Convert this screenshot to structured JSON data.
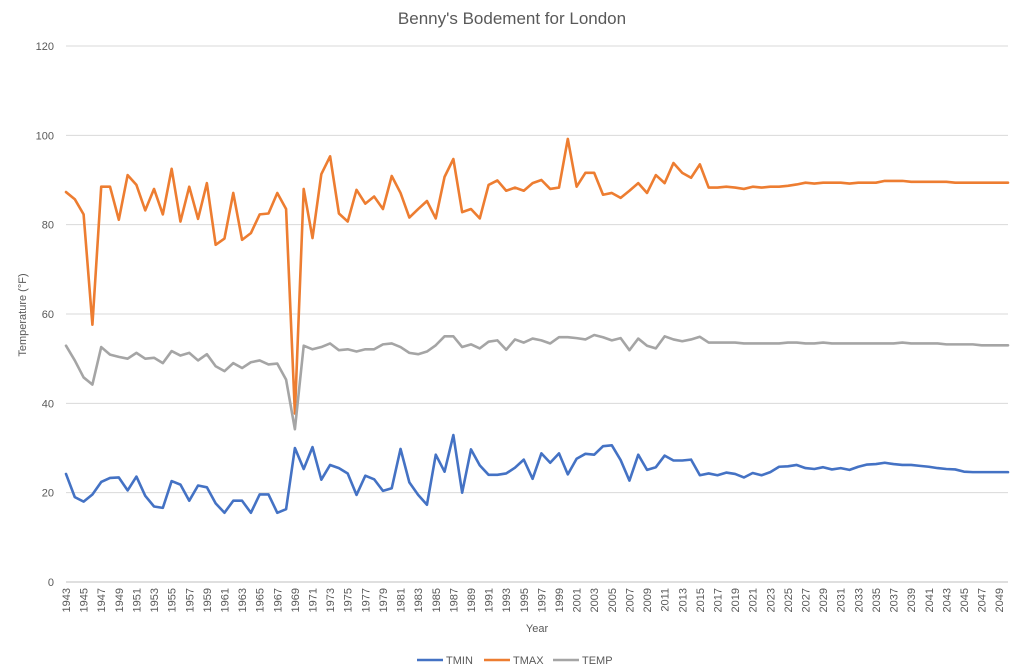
{
  "chart_data": {
    "type": "line",
    "title": "Benny's Bodement for London",
    "xlabel": "Year",
    "ylabel": "Temperature (°F)",
    "ylim": [
      0,
      120
    ],
    "yticks": [
      0,
      20,
      40,
      60,
      80,
      100,
      120
    ],
    "xlim": [
      1943,
      2050
    ],
    "x_tick_step": 2,
    "grid": "horizontal",
    "legend_position": "bottom",
    "x": [
      1943,
      1944,
      1945,
      1946,
      1947,
      1948,
      1949,
      1950,
      1951,
      1952,
      1953,
      1954,
      1955,
      1956,
      1957,
      1958,
      1959,
      1960,
      1961,
      1962,
      1963,
      1964,
      1965,
      1966,
      1967,
      1968,
      1969,
      1970,
      1971,
      1972,
      1973,
      1974,
      1975,
      1976,
      1977,
      1978,
      1979,
      1980,
      1981,
      1982,
      1983,
      1984,
      1985,
      1986,
      1987,
      1988,
      1989,
      1990,
      1991,
      1992,
      1993,
      1994,
      1995,
      1996,
      1997,
      1998,
      1999,
      2000,
      2001,
      2002,
      2003,
      2004,
      2005,
      2006,
      2007,
      2008,
      2009,
      2010,
      2011,
      2012,
      2013,
      2014,
      2015,
      2016,
      2017,
      2018,
      2019,
      2020,
      2021,
      2022,
      2023,
      2024,
      2025,
      2026,
      2027,
      2028,
      2029,
      2030,
      2031,
      2032,
      2033,
      2034,
      2035,
      2036,
      2037,
      2038,
      2039,
      2040,
      2041,
      2042,
      2043,
      2044,
      2045,
      2046,
      2047,
      2048,
      2049,
      2050
    ],
    "series": [
      {
        "name": "TMIN",
        "color": "#4472c4",
        "values": [
          24.2,
          19.0,
          18.0,
          19.6,
          22.4,
          23.3,
          23.4,
          20.5,
          23.6,
          19.3,
          16.9,
          16.6,
          22.6,
          21.8,
          18.2,
          21.6,
          21.2,
          17.6,
          15.5,
          18.2,
          18.2,
          15.5,
          19.6,
          19.6,
          15.5,
          16.3,
          30.0,
          25.3,
          30.2,
          22.9,
          26.2,
          25.5,
          24.3,
          19.5,
          23.8,
          23.0,
          20.4,
          21.0,
          29.8,
          22.3,
          19.5,
          17.3,
          28.5,
          24.7,
          32.9,
          20.0,
          29.7,
          26.1,
          24.0,
          24.0,
          24.3,
          25.6,
          27.4,
          23.1,
          28.8,
          26.7,
          28.8,
          24.1,
          27.6,
          28.7,
          28.5,
          30.4,
          30.6,
          27.3,
          22.7,
          28.5,
          25.1,
          25.7,
          28.3,
          27.2,
          27.2,
          27.4,
          23.9,
          24.3,
          23.9,
          24.5,
          24.2,
          23.4,
          24.4,
          23.9,
          24.6,
          25.8,
          25.9,
          26.2,
          25.5,
          25.3,
          25.7,
          25.2,
          25.5,
          25.1,
          25.8,
          26.3,
          26.4,
          26.7,
          26.4,
          26.2,
          26.2,
          26.0,
          25.8,
          25.5,
          25.3,
          25.2,
          24.7,
          24.6,
          24.6,
          24.6,
          24.6,
          24.6
        ]
      },
      {
        "name": "TMAX",
        "color": "#ed7d31",
        "values": [
          87.3,
          85.7,
          82.3,
          57.6,
          88.5,
          88.5,
          81.1,
          91.1,
          88.9,
          83.2,
          88.0,
          82.3,
          92.5,
          80.7,
          88.5,
          81.3,
          89.3,
          75.5,
          76.9,
          87.1,
          76.6,
          78.1,
          82.3,
          82.5,
          87.1,
          83.5,
          37.7,
          88.0,
          77.0,
          91.3,
          95.3,
          82.5,
          80.7,
          87.8,
          84.7,
          86.3,
          83.5,
          90.9,
          87.1,
          81.6,
          83.5,
          85.3,
          81.4,
          90.7,
          94.7,
          82.8,
          83.5,
          81.4,
          88.9,
          89.9,
          87.6,
          88.3,
          87.6,
          89.3,
          90.0,
          88.0,
          88.3,
          99.2,
          88.5,
          91.6,
          91.6,
          86.7,
          87.1,
          86.0,
          87.6,
          89.3,
          87.1,
          91.1,
          89.3,
          93.8,
          91.6,
          90.5,
          93.5,
          88.3,
          88.3,
          88.5,
          88.3,
          88.0,
          88.5,
          88.3,
          88.5,
          88.5,
          88.7,
          89.0,
          89.4,
          89.2,
          89.4,
          89.4,
          89.4,
          89.2,
          89.4,
          89.4,
          89.4,
          89.8,
          89.8,
          89.8,
          89.6,
          89.6,
          89.6,
          89.6,
          89.6,
          89.4,
          89.4,
          89.4,
          89.4,
          89.4,
          89.4,
          89.4
        ]
      },
      {
        "name": "TEMP",
        "color": "#a5a5a5",
        "values": [
          52.9,
          49.6,
          45.8,
          44.2,
          52.6,
          50.9,
          50.4,
          50.0,
          51.3,
          50.0,
          50.2,
          49.0,
          51.7,
          50.7,
          51.3,
          49.6,
          51.0,
          48.3,
          47.2,
          49.0,
          47.9,
          49.2,
          49.6,
          48.7,
          48.9,
          45.3,
          34.2,
          52.9,
          52.1,
          52.6,
          53.4,
          51.9,
          52.1,
          51.6,
          52.1,
          52.1,
          53.2,
          53.4,
          52.6,
          51.3,
          51.0,
          51.6,
          53.0,
          55.0,
          55.0,
          52.6,
          53.2,
          52.3,
          53.8,
          54.1,
          52.0,
          54.3,
          53.6,
          54.5,
          54.1,
          53.4,
          54.8,
          54.8,
          54.6,
          54.3,
          55.3,
          54.8,
          54.1,
          54.6,
          51.9,
          54.5,
          52.9,
          52.3,
          55.0,
          54.3,
          53.9,
          54.3,
          54.9,
          53.6,
          53.6,
          53.6,
          53.6,
          53.4,
          53.4,
          53.4,
          53.4,
          53.4,
          53.6,
          53.6,
          53.4,
          53.4,
          53.6,
          53.4,
          53.4,
          53.4,
          53.4,
          53.4,
          53.4,
          53.4,
          53.4,
          53.6,
          53.4,
          53.4,
          53.4,
          53.4,
          53.2,
          53.2,
          53.2,
          53.2,
          53.0,
          53.0,
          53.0,
          53.0
        ]
      }
    ]
  }
}
